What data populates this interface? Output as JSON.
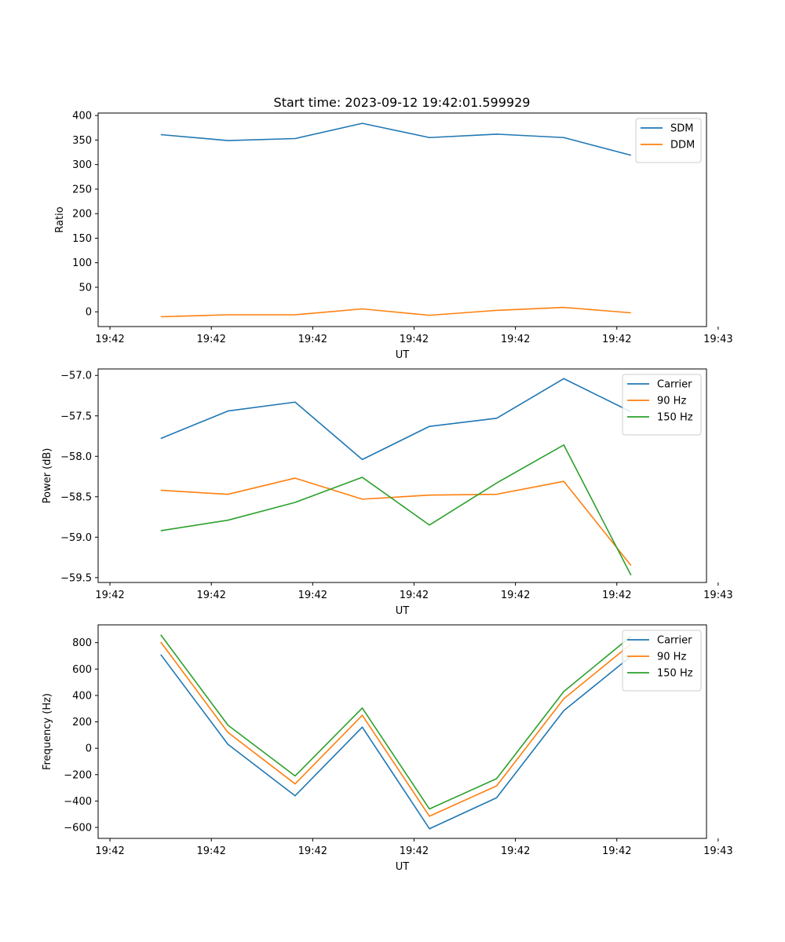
{
  "title": "Start time: 2023-09-12 19:42:01.599929",
  "colors": {
    "blue": "#1f77b4",
    "orange": "#ff7f0e",
    "green": "#2ca02c"
  },
  "chart_data": [
    {
      "type": "line",
      "xlabel": "UT",
      "ylabel": "Ratio",
      "x": [
        1,
        2,
        3,
        4,
        5,
        6,
        7,
        8
      ],
      "xlim": [
        0.068,
        9.124
      ],
      "xticks": [
        0.244,
        1.753,
        3.262,
        4.771,
        6.28,
        7.789,
        9.298
      ],
      "xtick_labels": [
        "19:42",
        "19:42",
        "19:42",
        "19:42",
        "19:42",
        "19:42",
        "19:43"
      ],
      "ylim": [
        -30,
        405
      ],
      "yticks": [
        0,
        50,
        100,
        150,
        200,
        250,
        300,
        350,
        400
      ],
      "ytick_labels": [
        "0",
        "50",
        "100",
        "150",
        "200",
        "250",
        "300",
        "350",
        "400"
      ],
      "legend": "top-right",
      "series": [
        {
          "name": "SDM",
          "color": "#1f77b4",
          "values": [
            361,
            349,
            353,
            384,
            355,
            362,
            355,
            319
          ]
        },
        {
          "name": "DDM",
          "color": "#ff7f0e",
          "values": [
            -10,
            -6,
            -6,
            6,
            -7,
            3,
            9,
            -2
          ]
        }
      ]
    },
    {
      "type": "line",
      "xlabel": "UT",
      "ylabel": "Power (dB)",
      "x": [
        1,
        2,
        3,
        4,
        5,
        6,
        7,
        8
      ],
      "xlim": [
        0.068,
        9.124
      ],
      "xticks": [
        0.244,
        1.753,
        3.262,
        4.771,
        6.28,
        7.789,
        9.298
      ],
      "xtick_labels": [
        "19:42",
        "19:42",
        "19:42",
        "19:42",
        "19:42",
        "19:42",
        "19:43"
      ],
      "ylim": [
        -59.56,
        -56.92
      ],
      "yticks": [
        -59.5,
        -59.0,
        -58.5,
        -58.0,
        -57.5,
        -57.0
      ],
      "ytick_labels": [
        "−59.5",
        "−59.0",
        "−58.5",
        "−58.0",
        "−57.5",
        "−57.0"
      ],
      "legend": "top-right",
      "series": [
        {
          "name": "Carrier",
          "color": "#1f77b4",
          "values": [
            -57.78,
            -57.44,
            -57.33,
            -58.04,
            -57.63,
            -57.53,
            -57.04,
            -57.45
          ]
        },
        {
          "name": "90 Hz",
          "color": "#ff7f0e",
          "values": [
            -58.42,
            -58.47,
            -58.27,
            -58.53,
            -58.48,
            -58.47,
            -58.31,
            -59.35
          ]
        },
        {
          "name": "150 Hz",
          "color": "#2ca02c",
          "values": [
            -58.92,
            -58.79,
            -58.57,
            -58.26,
            -58.85,
            -58.33,
            -57.86,
            -59.47
          ]
        }
      ]
    },
    {
      "type": "line",
      "xlabel": "UT",
      "ylabel": "Frequency (Hz)",
      "x": [
        1,
        2,
        3,
        4,
        5,
        6,
        7,
        8
      ],
      "xlim": [
        0.068,
        9.124
      ],
      "xticks": [
        0.244,
        1.753,
        3.262,
        4.771,
        6.28,
        7.789,
        9.298
      ],
      "xtick_labels": [
        "19:42",
        "19:42",
        "19:42",
        "19:42",
        "19:42",
        "19:42",
        "19:43"
      ],
      "ylim": [
        -683,
        935
      ],
      "yticks": [
        -600,
        -400,
        -200,
        0,
        200,
        400,
        600,
        800
      ],
      "ytick_labels": [
        "−600",
        "−400",
        "−200",
        "0",
        "200",
        "400",
        "600",
        "800"
      ],
      "legend": "top-right",
      "series": [
        {
          "name": "Carrier",
          "color": "#1f77b4",
          "values": [
            710,
            30,
            -360,
            160,
            -610,
            -375,
            285,
            697
          ]
        },
        {
          "name": "90 Hz",
          "color": "#ff7f0e",
          "values": [
            805,
            120,
            -270,
            250,
            -515,
            -285,
            375,
            790
          ]
        },
        {
          "name": "150 Hz",
          "color": "#2ca02c",
          "values": [
            860,
            175,
            -210,
            305,
            -460,
            -230,
            430,
            848
          ]
        }
      ]
    }
  ]
}
